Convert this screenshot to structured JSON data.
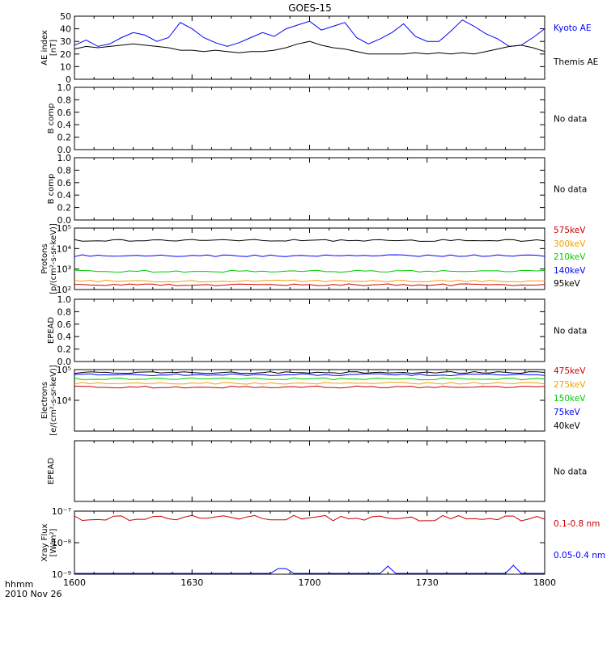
{
  "title": "GOES-15",
  "footer": {
    "units_label": "hhmm",
    "date_label": "2010 Nov 26"
  },
  "x_axis": {
    "ticks": [
      "1600",
      "1630",
      "1700",
      "1730",
      "1800"
    ],
    "range_minutes": [
      0,
      120
    ]
  },
  "colors": {
    "black": "#000000",
    "blue": "#0000ff",
    "red": "#cc0000",
    "green": "#00cc00",
    "orange": "#f0a000"
  },
  "chart_data": [
    {
      "type": "line",
      "panel": "ae",
      "ylabel": [
        "AE index",
        "[nT]"
      ],
      "ylim": [
        0,
        50
      ],
      "yticks": [
        "0",
        "10",
        "20",
        "30",
        "40",
        "50"
      ],
      "scale": "linear",
      "x_minutes": [
        0,
        3,
        6,
        9,
        12,
        15,
        18,
        21,
        24,
        27,
        30,
        33,
        36,
        39,
        42,
        45,
        48,
        51,
        54,
        57,
        60,
        63,
        66,
        69,
        72,
        75,
        78,
        81,
        84,
        87,
        90,
        93,
        96,
        99,
        102,
        105,
        108,
        111,
        114,
        117,
        120
      ],
      "series": [
        {
          "name": "Kyoto AE",
          "color": "#0000ff",
          "values": [
            27,
            31,
            26,
            28,
            33,
            37,
            35,
            30,
            33,
            45,
            40,
            33,
            29,
            26,
            29,
            33,
            37,
            34,
            40,
            43,
            46,
            39,
            42,
            45,
            33,
            28,
            32,
            37,
            44,
            34,
            30,
            30,
            38,
            47,
            42,
            36,
            32,
            26,
            27,
            33,
            40
          ]
        },
        {
          "name": "Themis AE",
          "color": "#000000",
          "values": [
            24,
            26,
            25,
            26,
            27,
            28,
            27,
            26,
            25,
            23,
            23,
            22,
            23,
            22,
            21,
            22,
            22,
            23,
            25,
            28,
            30,
            27,
            25,
            24,
            22,
            20,
            20,
            20,
            20,
            21,
            20,
            21,
            20,
            21,
            20,
            22,
            24,
            26,
            27,
            25,
            22
          ]
        }
      ]
    },
    {
      "type": "line",
      "panel": "bcomp1",
      "ylabel": [
        "B comp"
      ],
      "ylim": [
        0,
        1
      ],
      "yticks": [
        "0.0",
        "0.2",
        "0.4",
        "0.6",
        "0.8",
        "1.0"
      ],
      "scale": "linear",
      "note": "No data",
      "series": []
    },
    {
      "type": "line",
      "panel": "bcomp2",
      "ylabel": [
        "B comp"
      ],
      "ylim": [
        0,
        1
      ],
      "yticks": [
        "0.0",
        "0.2",
        "0.4",
        "0.6",
        "0.8",
        "1.0"
      ],
      "scale": "linear",
      "note": "No data",
      "series": []
    },
    {
      "type": "line",
      "panel": "protons",
      "ylabel": [
        "Protons",
        "[p/(cm²-s-sr-keV)]"
      ],
      "ylim": [
        100,
        100000
      ],
      "yticks": [
        "10²",
        "10³",
        "10⁴",
        "10⁵"
      ],
      "scale": "log",
      "series": [
        {
          "name": "575keV",
          "color": "#cc0000",
          "values_const": 170
        },
        {
          "name": "300keV",
          "color": "#f0a000",
          "values_const": 260
        },
        {
          "name": "210keV",
          "color": "#00cc00",
          "values_const": 780
        },
        {
          "name": "140keV",
          "color": "#0000ff",
          "values_const": 4500
        },
        {
          "name": "95keV",
          "color": "#000000",
          "values_const": 25000
        }
      ]
    },
    {
      "type": "line",
      "panel": "epead1",
      "ylabel": [
        "EPEAD"
      ],
      "ylim": [
        0,
        1
      ],
      "yticks": [
        "0.0",
        "0.2",
        "0.4",
        "0.6",
        "0.8",
        "1.0"
      ],
      "scale": "linear",
      "note": "No data",
      "series": []
    },
    {
      "type": "line",
      "panel": "electrons",
      "ylabel": [
        "Electrons",
        "[e/(cm²-s-sr-keV)]"
      ],
      "ylim": [
        1000,
        100000
      ],
      "yticks": [
        "10⁴",
        "10⁵"
      ],
      "scale": "log",
      "series": [
        {
          "name": "475keV",
          "color": "#cc0000",
          "values_const": 27000
        },
        {
          "name": "275keV",
          "color": "#f0a000",
          "values_const": 36000
        },
        {
          "name": "150keV",
          "color": "#00cc00",
          "values_const": 50000
        },
        {
          "name": "75keV",
          "color": "#0000ff",
          "values_const": 68000
        },
        {
          "name": "40keV",
          "color": "#000000",
          "values_const": 80000
        }
      ]
    },
    {
      "type": "line",
      "panel": "epead2",
      "ylabel": [
        "EPEAD"
      ],
      "ylim": [
        0,
        1
      ],
      "yticks": [],
      "scale": "linear",
      "note": "No data",
      "series": []
    },
    {
      "type": "line",
      "panel": "xray",
      "ylabel": [
        "Xray Flux",
        "[W/m²]"
      ],
      "ylim": [
        1e-09,
        1e-07
      ],
      "yticks": [
        "10⁻⁹",
        "10⁻⁸",
        "10⁻⁷"
      ],
      "scale": "log",
      "series": [
        {
          "name": "0.1-0.8 nm",
          "color": "#cc0000",
          "values_const": 6e-08
        },
        {
          "name": "0.05-0.4 nm",
          "color": "#0000ff",
          "values_const": 1e-09
        }
      ]
    }
  ]
}
